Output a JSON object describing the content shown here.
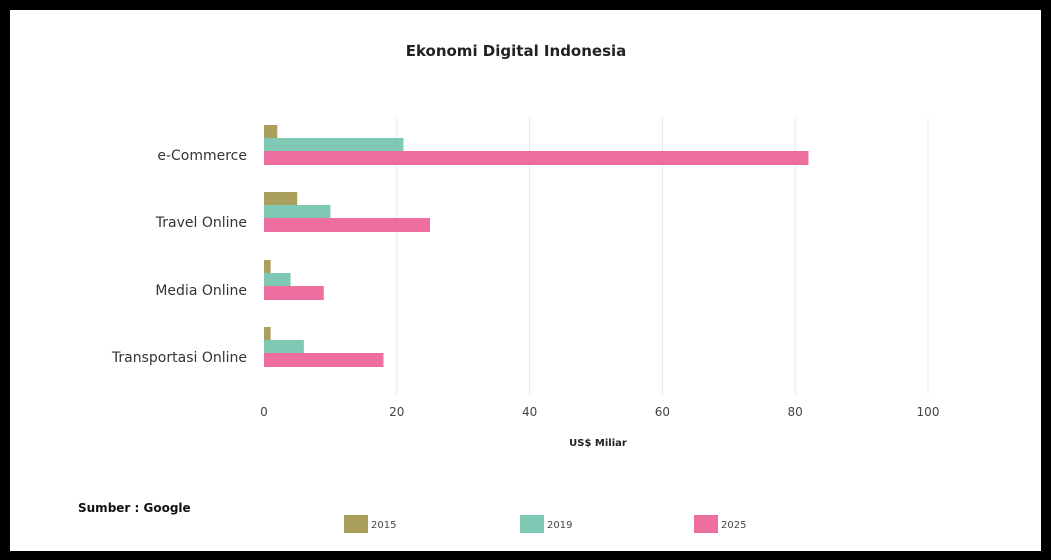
{
  "chart_data": {
    "type": "bar",
    "orientation": "horizontal",
    "title": "Ekonomi Digital Indonesia",
    "xlabel": "US$ Miliar",
    "ylabel": "",
    "xlim": [
      0,
      100
    ],
    "xticks": [
      0,
      20,
      40,
      60,
      80,
      100
    ],
    "grid": true,
    "legend_position": "bottom",
    "categories": [
      "e-Commerce",
      "Travel Online",
      "Media Online",
      "Transportasi Online"
    ],
    "series": [
      {
        "name": "2015",
        "color": "#aa9f5c",
        "values": [
          2,
          5,
          1,
          1
        ]
      },
      {
        "name": "2019",
        "color": "#7ec8b4",
        "values": [
          21,
          10,
          4,
          6
        ]
      },
      {
        "name": "2025",
        "color": "#ee6ea0",
        "values": [
          82,
          25,
          9,
          18
        ]
      }
    ]
  },
  "source_text": "Sumber : Google"
}
